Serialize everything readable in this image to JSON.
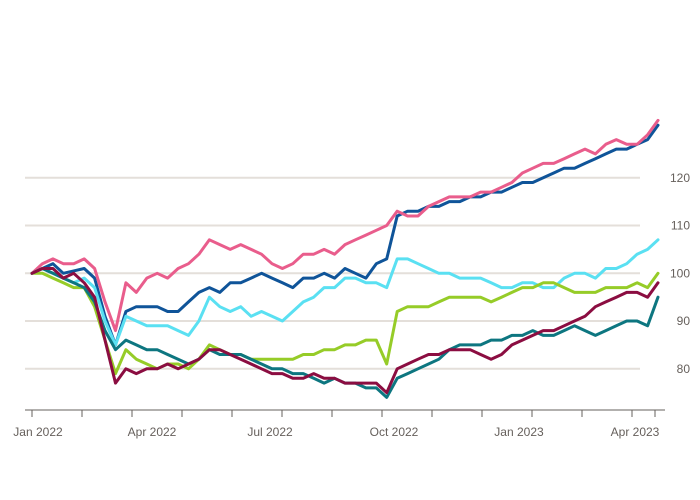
{
  "chart_data": {
    "type": "line",
    "title": "",
    "xlabel": "",
    "ylabel": "",
    "x_tick_labels": [
      "Jan 2022",
      "Apr 2022",
      "Jul 2022",
      "Oct 2022",
      "Jan 2023",
      "Apr 2023"
    ],
    "y_ticks": [
      80,
      90,
      100,
      110,
      120
    ],
    "y_tick_labels": [
      "80",
      "90",
      "100",
      "110",
      "120"
    ],
    "ylim": [
      72,
      130
    ],
    "grid": true,
    "legend_position": "top",
    "series": [
      {
        "name": "",
        "color": "#0f5499",
        "values": [
          100,
          101,
          102,
          100,
          100.5,
          101,
          99,
          91,
          85,
          92,
          93,
          93,
          93,
          92,
          92,
          94,
          96,
          97,
          96,
          98,
          98,
          99,
          100,
          99,
          98,
          97,
          99,
          99,
          100,
          99,
          101,
          100,
          99,
          102,
          103,
          112,
          113,
          113,
          114,
          114,
          115,
          115,
          116,
          116,
          117,
          117,
          118,
          119,
          119,
          120,
          121,
          122,
          122,
          123,
          124,
          125,
          126,
          126,
          127,
          128,
          131
        ]
      },
      {
        "name": "",
        "color": "#e95d8c",
        "values": [
          100,
          102,
          103,
          102,
          102,
          103,
          101,
          94,
          88,
          98,
          96,
          99,
          100,
          99,
          101,
          102,
          104,
          107,
          106,
          105,
          106,
          105,
          104,
          102,
          101,
          102,
          104,
          104,
          105,
          104,
          106,
          107,
          108,
          109,
          110,
          113,
          112,
          112,
          114,
          115,
          116,
          116,
          116,
          117,
          117,
          118,
          119,
          121,
          122,
          123,
          123,
          124,
          125,
          126,
          125,
          127,
          128,
          127,
          127,
          129,
          132
        ]
      },
      {
        "name": "",
        "color": "#5ae0f2",
        "values": [
          100,
          101,
          100,
          99,
          98,
          99,
          97,
          90,
          85,
          91,
          90,
          89,
          89,
          89,
          88,
          87,
          90,
          95,
          93,
          92,
          93,
          91,
          92,
          91,
          90,
          92,
          94,
          95,
          97,
          97,
          99,
          99,
          98,
          98,
          97,
          103,
          103,
          102,
          101,
          100,
          100,
          99,
          99,
          99,
          98,
          97,
          97,
          98,
          98,
          97,
          97,
          99,
          100,
          100,
          99,
          101,
          101,
          102,
          104,
          105,
          107
        ]
      },
      {
        "name": "",
        "color": "#96cc28",
        "values": [
          100,
          100,
          99,
          98,
          97,
          97,
          93,
          86,
          79,
          84,
          82,
          81,
          80,
          81,
          81,
          80,
          82,
          85,
          84,
          83,
          83,
          82,
          82,
          82,
          82,
          82,
          83,
          83,
          84,
          84,
          85,
          85,
          86,
          86,
          81,
          92,
          93,
          93,
          93,
          94,
          95,
          95,
          95,
          95,
          94,
          95,
          96,
          97,
          97,
          98,
          98,
          97,
          96,
          96,
          96,
          97,
          97,
          97,
          98,
          97,
          100
        ]
      },
      {
        "name": "",
        "color": "#0d7680",
        "values": [
          100,
          101,
          100,
          99,
          98,
          97,
          94,
          88,
          84,
          86,
          85,
          84,
          84,
          83,
          82,
          81,
          82,
          84,
          83,
          83,
          83,
          82,
          81,
          80,
          80,
          79,
          79,
          78,
          77,
          78,
          77,
          77,
          76,
          76,
          74,
          78,
          79,
          80,
          81,
          82,
          84,
          85,
          85,
          85,
          86,
          86,
          87,
          87,
          88,
          87,
          87,
          88,
          89,
          88,
          87,
          88,
          89,
          90,
          90,
          89,
          95
        ]
      },
      {
        "name": "",
        "color": "#8b0d41",
        "values": [
          100,
          101,
          101,
          99,
          100,
          98,
          95,
          86,
          77,
          80,
          79,
          80,
          80,
          81,
          80,
          81,
          82,
          84,
          84,
          83,
          82,
          81,
          80,
          79,
          79,
          78,
          78,
          79,
          78,
          78,
          77,
          77,
          77,
          77,
          75,
          80,
          81,
          82,
          83,
          83,
          84,
          84,
          84,
          83,
          82,
          83,
          85,
          86,
          87,
          88,
          88,
          89,
          90,
          91,
          93,
          94,
          95,
          96,
          96,
          95,
          98
        ]
      }
    ],
    "source": ""
  }
}
